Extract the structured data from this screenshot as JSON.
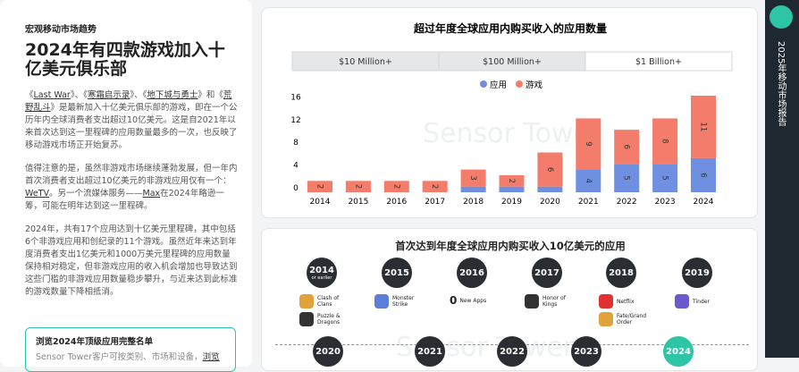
{
  "header": {
    "section": "宏观移动市场趋势",
    "title": "2024年有四款游戏加入十亿美元俱乐部"
  },
  "paragraphs": [
    [
      "《",
      "Last War",
      "》、《",
      "寒霜启示录",
      "》、《",
      "地下城与勇士",
      "》和《",
      "荒野乱斗",
      "》是最新加入十亿美元俱乐部的游戏，即在一个公历年内全球消费者支出超过10亿美元。这是自2021年以来首次达到这一里程碑的应用数量最多的一次，也反映了移动游戏市场正开始复苏。"
    ],
    [
      "值得注意的是，虽然非游戏市场继续蓬勃发展，但一年内首次消费者支出超过10亿美元的非游戏应用仅有一个：",
      "WeTV",
      "。另一个流媒体服务——",
      "Max",
      "在2024年略逊一筹，可能在明年达到这一里程碑。"
    ],
    [
      "2024年，共有17个应用达到十亿美元里程碑，其中包括6个非游戏应用和创纪录的11个游戏。虽然近年来达到年度消费者支出1亿美元和1000万美元里程碑的应用数量保持相对稳定，但非游戏应用的收入机会增加也导致达到这些门槛的非游戏应用数量稳步攀升，与近来达到此标准的游戏数量下降相抵消。"
    ]
  ],
  "callout": {
    "title": "浏览2024年顶级应用完整名单",
    "text": "Sensor Tower客户可按类别、市场和设备，",
    "link": "浏览"
  },
  "sidebar": {
    "label": "2025年移动市场报告"
  },
  "watermark": "Sensor Tower",
  "chart_data": {
    "type": "stacked-bar",
    "title": "超过年度全球应用内购买收入的应用数量",
    "tabs": [
      "$10 Million+",
      "$100 Million+",
      "$1 Billion+"
    ],
    "active_tab": 2,
    "categories": [
      "2014",
      "2015",
      "2016",
      "2017",
      "2018",
      "2019",
      "2020",
      "2021",
      "2022",
      "2023",
      "2024"
    ],
    "series": [
      {
        "name": "应用",
        "color": "#6f8fe0",
        "values": [
          0,
          0,
          0,
          0,
          1,
          1,
          1,
          4,
          5,
          5,
          6
        ]
      },
      {
        "name": "游戏",
        "color": "#f47c6a",
        "values": [
          2,
          2,
          2,
          2,
          3,
          2,
          6,
          9,
          6,
          8,
          11
        ]
      }
    ],
    "ylim": [
      0,
      17
    ],
    "yticks": [
      0,
      4,
      8,
      12,
      16
    ],
    "grid": false
  },
  "timeline": {
    "title": "首次达到年度全球应用内购买收入10亿美元的应用",
    "milestones": [
      {
        "year": "2014",
        "note": "or earlier",
        "apps": [
          "Clash of Clans",
          "Puzzle & Dragons"
        ]
      },
      {
        "year": "2015",
        "apps": [
          "Monster Strike"
        ]
      },
      {
        "year": "2016",
        "count": 0,
        "count_text": "New Apps"
      },
      {
        "year": "2017",
        "apps": [
          "Honor of Kings"
        ]
      },
      {
        "year": "2018",
        "apps": [
          "Netflix",
          "Fate/Grand Order"
        ]
      },
      {
        "year": "2019",
        "apps": [
          "Tinder"
        ]
      },
      {
        "year": "2020"
      },
      {
        "year": "2021"
      },
      {
        "year": "2022"
      },
      {
        "year": "2023"
      },
      {
        "year": "2024",
        "highlight": true
      }
    ]
  }
}
